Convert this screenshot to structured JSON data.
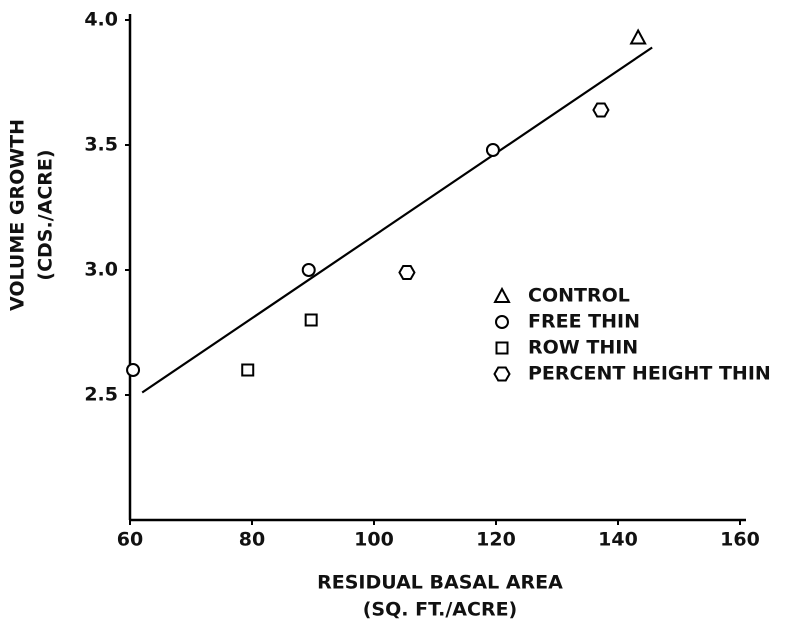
{
  "chart_data": {
    "type": "scatter",
    "xlabel": [
      "RESIDUAL BASAL AREA",
      "(SQ. FT./ACRE)"
    ],
    "ylabel": [
      "VOLUME GROWTH",
      "(CDS./ACRE)"
    ],
    "xlim": [
      60,
      160
    ],
    "ylim": [
      2.0,
      4.0
    ],
    "xticks": [
      60,
      80,
      100,
      120,
      140,
      160
    ],
    "yticks": [
      2.5,
      {
        "value": 3.0,
        "label": "3.0"
      },
      3.5,
      {
        "value": 4.0,
        "label": "4.0"
      }
    ],
    "color": "#000000",
    "series": [
      {
        "name": "CONTROL",
        "marker": "triangle",
        "x": [
          143.3
        ],
        "values": [
          3.93
        ]
      },
      {
        "name": "FREE THIN",
        "marker": "circle",
        "x": [
          60.5,
          89.3,
          119.5
        ],
        "values": [
          2.6,
          3.0,
          3.48
        ]
      },
      {
        "name": "ROW THIN",
        "marker": "square",
        "x": [
          79.3,
          89.7
        ],
        "values": [
          2.6,
          2.8
        ]
      },
      {
        "name": "PERCENT HEIGHT THIN",
        "marker": "hexagon",
        "x": [
          105.4,
          137.2
        ],
        "values": [
          2.99,
          3.64
        ]
      }
    ],
    "trend_line": {
      "x": [
        62,
        145.6
      ],
      "values": [
        2.51,
        3.89
      ]
    }
  }
}
